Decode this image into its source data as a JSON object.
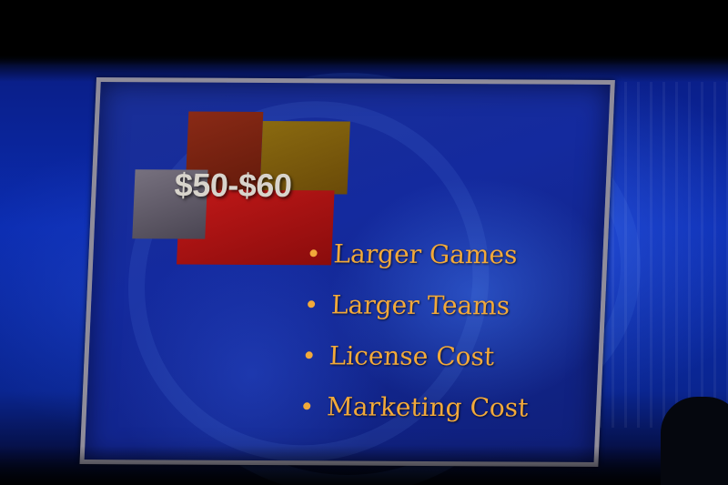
{
  "slide": {
    "price_range": "$50-$60",
    "bullets": [
      "Larger Games",
      "Larger Teams",
      "License Cost",
      "Marketing Cost"
    ]
  },
  "colors": {
    "bullet_text": "#f2a93a",
    "price_text": "#d8d4cc",
    "background_blue": "#0b2cb0"
  }
}
